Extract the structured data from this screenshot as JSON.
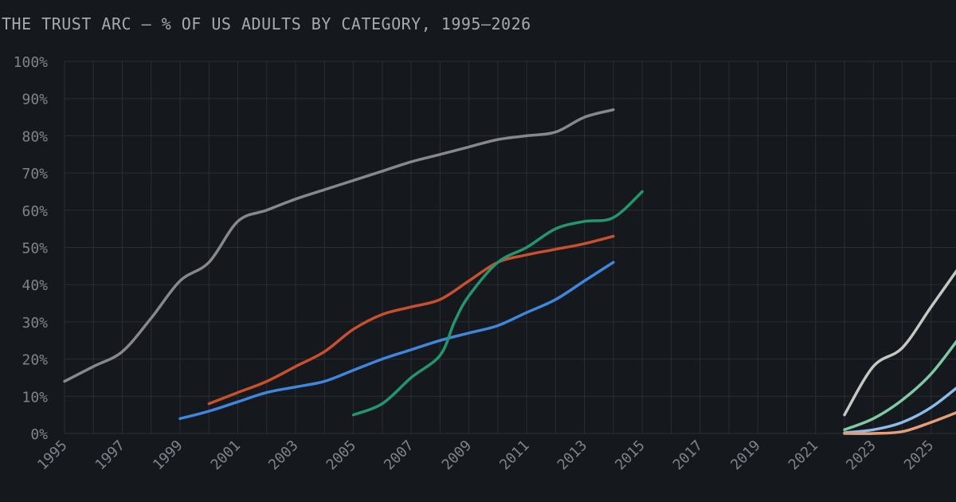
{
  "chart_data": {
    "type": "line",
    "title": "THE TRUST ARC — % OF US ADULTS BY CATEGORY, 1995–2026",
    "xlabel": "",
    "ylabel": "",
    "xlim": [
      1995,
      2026
    ],
    "ylim": [
      0,
      100
    ],
    "grid": true,
    "legend": "none",
    "x_ticks": [
      "1995",
      "1997",
      "1999",
      "2001",
      "2003",
      "2005",
      "2007",
      "2009",
      "2011",
      "2013",
      "2015",
      "2017",
      "2019",
      "2021",
      "2023",
      "2025"
    ],
    "y_ticks": [
      "0%",
      "10%",
      "20%",
      "30%",
      "40%",
      "50%",
      "60%",
      "70%",
      "80%",
      "90%",
      "100%"
    ],
    "series": [
      {
        "color": "#88888a",
        "points": [
          [
            1995,
            14
          ],
          [
            1996,
            18
          ],
          [
            1997,
            22
          ],
          [
            1998,
            31
          ],
          [
            1999,
            41
          ],
          [
            2000,
            46
          ],
          [
            2001,
            57
          ],
          [
            2002,
            60
          ],
          [
            2003,
            63
          ],
          [
            2004,
            65.5
          ],
          [
            2005,
            68
          ],
          [
            2006,
            70.5
          ],
          [
            2007,
            73
          ],
          [
            2008,
            75
          ],
          [
            2009,
            77
          ],
          [
            2010,
            79
          ],
          [
            2011,
            80
          ],
          [
            2012,
            81
          ],
          [
            2013,
            85
          ],
          [
            2014,
            87
          ]
        ]
      },
      {
        "color": "#c8502d",
        "points": [
          [
            2000,
            8
          ],
          [
            2001,
            11
          ],
          [
            2002,
            14
          ],
          [
            2003,
            18
          ],
          [
            2004,
            22
          ],
          [
            2005,
            28
          ],
          [
            2006,
            32
          ],
          [
            2007,
            34
          ],
          [
            2008,
            36
          ],
          [
            2009,
            41
          ],
          [
            2010,
            46
          ],
          [
            2011,
            48
          ],
          [
            2012,
            49.5
          ],
          [
            2013,
            51
          ],
          [
            2014,
            53
          ]
        ]
      },
      {
        "color": "#3f86dc",
        "points": [
          [
            1999,
            4
          ],
          [
            2000,
            6
          ],
          [
            2001,
            8.5
          ],
          [
            2002,
            11
          ],
          [
            2003,
            12.5
          ],
          [
            2004,
            14
          ],
          [
            2005,
            17
          ],
          [
            2006,
            20
          ],
          [
            2007,
            22.5
          ],
          [
            2008,
            25
          ],
          [
            2009,
            27
          ],
          [
            2010,
            29
          ],
          [
            2011,
            32.5
          ],
          [
            2012,
            36
          ],
          [
            2013,
            41
          ],
          [
            2014,
            46
          ]
        ]
      },
      {
        "color": "#23966d",
        "points": [
          [
            2005,
            5
          ],
          [
            2006,
            8
          ],
          [
            2007,
            15
          ],
          [
            2008,
            21
          ],
          [
            2008.5,
            30
          ],
          [
            2009,
            37
          ],
          [
            2010,
            46
          ],
          [
            2011,
            50
          ],
          [
            2012,
            55
          ],
          [
            2013,
            57
          ],
          [
            2014,
            58
          ],
          [
            2015,
            65
          ]
        ]
      },
      {
        "color": "#c7c7c2",
        "points": [
          [
            2022,
            5
          ],
          [
            2023,
            18
          ],
          [
            2024,
            23
          ],
          [
            2025,
            34
          ],
          [
            2026,
            45
          ]
        ]
      },
      {
        "color": "#7fc9a5",
        "points": [
          [
            2022,
            1
          ],
          [
            2023,
            4
          ],
          [
            2024,
            9
          ],
          [
            2025,
            16
          ],
          [
            2026,
            26
          ]
        ]
      },
      {
        "color": "#8cbce9",
        "points": [
          [
            2022,
            0.2
          ],
          [
            2023,
            1
          ],
          [
            2024,
            3
          ],
          [
            2025,
            7
          ],
          [
            2026,
            13
          ]
        ]
      },
      {
        "color": "#e59e7a",
        "points": [
          [
            2022,
            0
          ],
          [
            2023,
            0
          ],
          [
            2024,
            0.5
          ],
          [
            2025,
            3
          ],
          [
            2026,
            6
          ]
        ]
      }
    ]
  }
}
